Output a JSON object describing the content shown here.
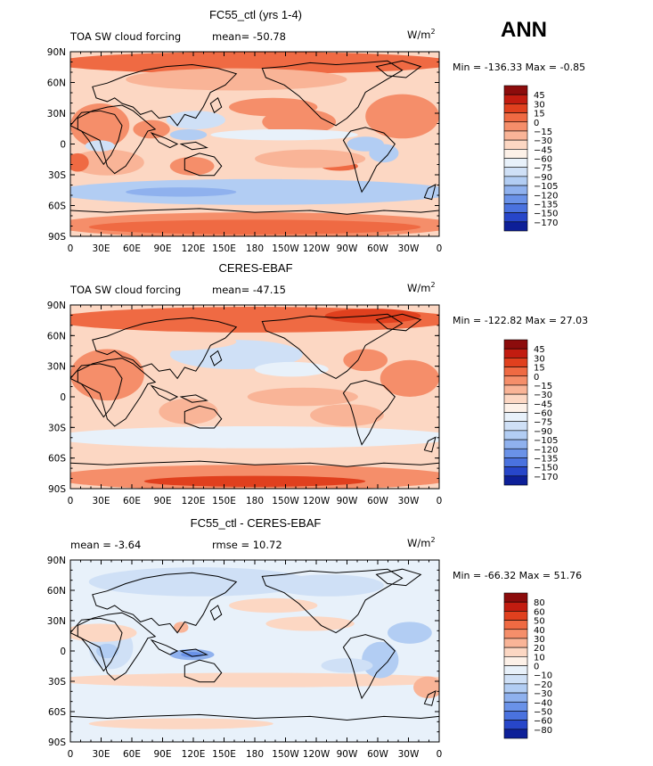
{
  "season_label": "ANN",
  "chart_data": [
    {
      "type": "heatmap",
      "title": "FC55_ctl (yrs 1-4)",
      "variable": "TOA SW cloud forcing",
      "units": "W/m",
      "units_exponent": "2",
      "stats_text": "mean=  -50.78",
      "minmax_text": "Min = -136.33 Max =  -0.85",
      "x_ticks": [
        "0",
        "30E",
        "60E",
        "90E",
        "120E",
        "150E",
        "180",
        "150W",
        "120W",
        "90W",
        "60W",
        "30W",
        "0"
      ],
      "y_ticks": [
        "90N",
        "60N",
        "30N",
        "0",
        "30S",
        "60S",
        "90S"
      ],
      "colorbar": {
        "labels": [
          "45",
          "30",
          "15",
          "0",
          "-15",
          "-30",
          "-45",
          "-60",
          "-75",
          "-90",
          "-105",
          "-120",
          "-135",
          "-150",
          "-170"
        ],
        "colors": [
          "#8c0c0c",
          "#c21c10",
          "#e0401e",
          "#ef6a43",
          "#f58e6a",
          "#f9b497",
          "#fcd7c3",
          "#fdf1e8",
          "#e8f1fa",
          "#cfe0f6",
          "#b2cdf3",
          "#8fb1ee",
          "#6a92e8",
          "#4a72df",
          "#2746c9",
          "#0d1f98"
        ]
      }
    },
    {
      "type": "heatmap",
      "title": "CERES-EBAF",
      "variable": "TOA SW cloud forcing",
      "units": "W/m",
      "units_exponent": "2",
      "stats_text": "mean=  -47.15",
      "minmax_text": "Min = -122.82 Max =  27.03",
      "x_ticks": [
        "0",
        "30E",
        "60E",
        "90E",
        "120E",
        "150E",
        "180",
        "150W",
        "120W",
        "90W",
        "60W",
        "30W",
        "0"
      ],
      "y_ticks": [
        "90N",
        "60N",
        "30N",
        "0",
        "30S",
        "60S",
        "90S"
      ],
      "colorbar": {
        "labels": [
          "45",
          "30",
          "15",
          "0",
          "-15",
          "-30",
          "-45",
          "-60",
          "-75",
          "-90",
          "-105",
          "-120",
          "-135",
          "-150",
          "-170"
        ],
        "colors": [
          "#8c0c0c",
          "#c21c10",
          "#e0401e",
          "#ef6a43",
          "#f58e6a",
          "#f9b497",
          "#fcd7c3",
          "#fdf1e8",
          "#e8f1fa",
          "#cfe0f6",
          "#b2cdf3",
          "#8fb1ee",
          "#6a92e8",
          "#4a72df",
          "#2746c9",
          "#0d1f98"
        ]
      }
    },
    {
      "type": "heatmap",
      "title": "FC55_ctl - CERES-EBAF",
      "variable": "",
      "units": "W/m",
      "units_exponent": "2",
      "stats_text": "mean =   -3.64",
      "stats_text2": "rmse =  10.72",
      "minmax_text": "Min = -66.32 Max =  51.76",
      "x_ticks": [
        "0",
        "30E",
        "60E",
        "90E",
        "120E",
        "150E",
        "180",
        "150W",
        "120W",
        "90W",
        "60W",
        "30W",
        "0"
      ],
      "y_ticks": [
        "90N",
        "60N",
        "30N",
        "0",
        "30S",
        "60S",
        "90S"
      ],
      "colorbar": {
        "labels": [
          "80",
          "60",
          "50",
          "40",
          "30",
          "20",
          "10",
          "0",
          "-10",
          "-20",
          "-30",
          "-40",
          "-50",
          "-60",
          "-80"
        ],
        "colors": [
          "#8c0c0c",
          "#c21c10",
          "#e0401e",
          "#ef6a43",
          "#f58e6a",
          "#f9b497",
          "#fcd7c3",
          "#fdf1e8",
          "#e8f1fa",
          "#cfe0f6",
          "#b2cdf3",
          "#8fb1ee",
          "#6a92e8",
          "#4a72df",
          "#2746c9",
          "#0d1f98"
        ]
      }
    }
  ]
}
